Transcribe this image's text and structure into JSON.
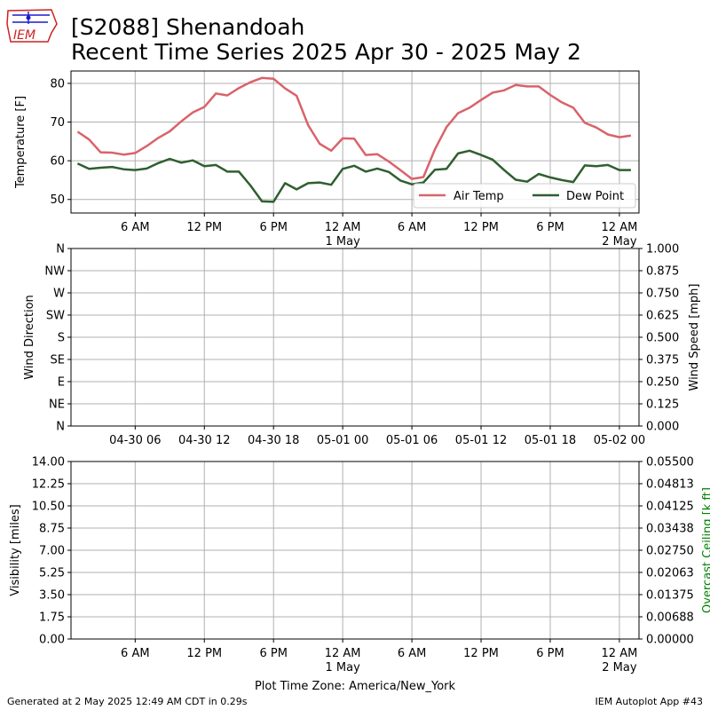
{
  "title": {
    "line1": "[S2088] Shenandoah",
    "line2": "Recent Time Series 2025 Apr 30 - 2025 May 2"
  },
  "logo": {
    "text": "IEM",
    "color_red": "#cc2222",
    "color_blue": "#1a1ad0"
  },
  "footer": {
    "left": "Generated at 2 May 2025 12:49 AM CDT in 0.29s",
    "right": "IEM Autoplot App #43"
  },
  "colors": {
    "air_temp": "#d9636a",
    "dew_point": "#2f5e2f",
    "grid": "#b0b0b0",
    "ceiling_label": "#008000"
  },
  "chart_data": [
    {
      "type": "line",
      "ylabel": "Temperature [F]",
      "ylim": [
        46.5,
        83.2
      ],
      "yticks": [
        50,
        60,
        70,
        80
      ],
      "x_range_hours": [
        "2025-04-30 01:00",
        "2025-05-02 01:00"
      ],
      "xtick_hours": [
        6,
        12,
        18,
        24,
        30,
        36,
        42,
        48
      ],
      "xtick_labels": [
        "6 AM",
        "12 PM",
        "6 PM",
        "12 AM\n1 May",
        "6 AM",
        "12 PM",
        "6 PM",
        "12 AM\n2 May"
      ],
      "grid": true,
      "legend": {
        "placement": "lower-right",
        "entries": [
          "Air Temp",
          "Dew Point"
        ]
      },
      "series": [
        {
          "name": "Air Temp",
          "x": [
            1,
            2,
            3,
            4,
            5,
            6,
            7,
            8,
            9,
            10,
            11,
            12,
            13,
            14,
            15,
            16,
            17,
            18,
            19,
            20,
            21,
            22,
            23,
            24,
            25,
            26,
            27,
            28,
            29,
            30,
            31,
            32,
            33,
            34,
            35,
            36,
            37,
            38,
            39,
            40,
            41,
            42,
            43,
            44,
            45,
            46,
            47,
            48,
            49
          ],
          "values": [
            67.5,
            65.5,
            62.2,
            62.1,
            61.6,
            62.0,
            63.8,
            65.9,
            67.6,
            70.2,
            72.5,
            73.9,
            77.4,
            76.9,
            78.8,
            80.3,
            81.4,
            81.2,
            78.7,
            76.8,
            69.2,
            64.4,
            62.6,
            65.8,
            65.7,
            61.5,
            61.7,
            59.8,
            57.6,
            55.3,
            55.8,
            63.0,
            68.7,
            72.3,
            73.7,
            75.7,
            77.6,
            78.2,
            79.6,
            79.2,
            79.2,
            77.0,
            75.1,
            73.7,
            69.8,
            68.6,
            66.8,
            66.1,
            66.5
          ]
        },
        {
          "name": "Dew Point",
          "x": [
            1,
            2,
            3,
            4,
            5,
            6,
            7,
            8,
            9,
            10,
            11,
            12,
            13,
            14,
            15,
            16,
            17,
            18,
            19,
            20,
            21,
            22,
            23,
            24,
            25,
            26,
            27,
            28,
            29,
            30,
            31,
            32,
            33,
            34,
            35,
            36,
            37,
            38,
            39,
            40,
            41,
            42,
            43,
            44,
            45,
            46,
            47,
            48,
            49
          ],
          "values": [
            59.3,
            57.9,
            58.2,
            58.4,
            57.8,
            57.6,
            58.0,
            59.4,
            60.5,
            59.5,
            60.1,
            58.6,
            58.9,
            57.2,
            57.2,
            53.6,
            49.5,
            49.4,
            54.2,
            52.6,
            54.2,
            54.4,
            53.8,
            57.9,
            58.7,
            57.2,
            58.0,
            57.1,
            54.9,
            53.9,
            54.4,
            57.7,
            57.9,
            61.9,
            62.6,
            61.5,
            60.3,
            57.6,
            55.1,
            54.6,
            56.6,
            55.7,
            55.0,
            54.5,
            58.8,
            58.6,
            58.9,
            57.6,
            57.6
          ]
        }
      ]
    },
    {
      "type": "scatter",
      "ylabel": "Wind Direction",
      "y2label": "Wind Speed [mph]",
      "yticks_left": [
        "N",
        "NE",
        "E",
        "SE",
        "S",
        "SW",
        "W",
        "NW",
        "N"
      ],
      "yticks_right": [
        "0.000",
        "0.125",
        "0.250",
        "0.375",
        "0.500",
        "0.625",
        "0.750",
        "0.875",
        "1.000"
      ],
      "xtick_hours": [
        6,
        12,
        18,
        24,
        30,
        36,
        42,
        48
      ],
      "xtick_labels": [
        "04-30 06",
        "04-30 12",
        "04-30 18",
        "05-01 00",
        "05-01 06",
        "05-01 12",
        "05-01 18",
        "05-02 00"
      ],
      "grid": true,
      "series": []
    },
    {
      "type": "line",
      "ylabel": "Visibility [miles]",
      "y2label": "Overcast Ceiling [k ft]",
      "yticks_left": [
        "0.00",
        "1.75",
        "3.50",
        "5.25",
        "7.00",
        "8.75",
        "10.50",
        "12.25",
        "14.00"
      ],
      "yticks_right": [
        "0.00000",
        "0.00688",
        "0.01375",
        "0.02063",
        "0.02750",
        "0.03438",
        "0.04125",
        "0.04813",
        "0.05500"
      ],
      "xtick_hours": [
        6,
        12,
        18,
        24,
        30,
        36,
        42,
        48
      ],
      "xtick_labels": [
        "6 AM",
        "12 PM",
        "6 PM",
        "12 AM\n1 May",
        "6 AM",
        "12 PM",
        "6 PM",
        "12 AM\n2 May"
      ],
      "xlabel": "Plot Time Zone: America/New_York",
      "grid": true,
      "series": []
    }
  ]
}
